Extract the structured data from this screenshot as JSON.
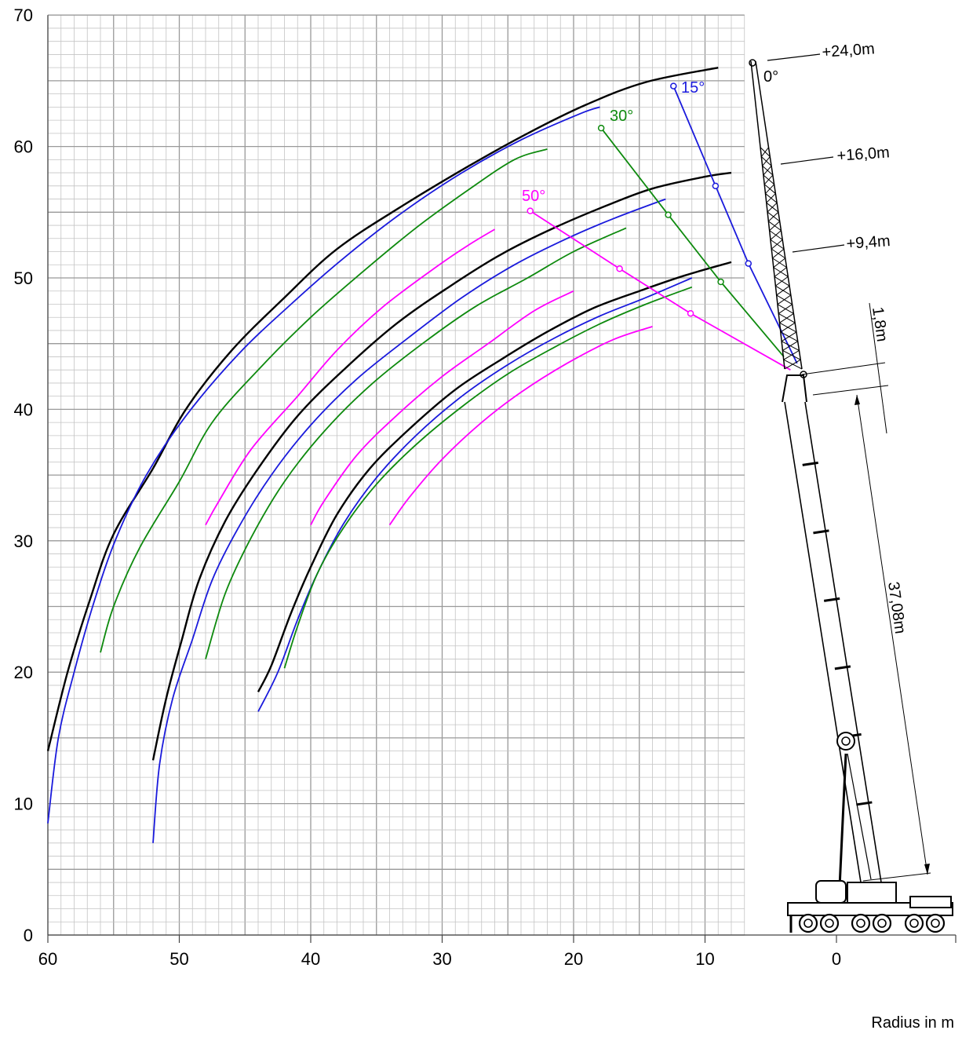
{
  "chart_data": {
    "type": "line",
    "title": "",
    "xlabel": "Radius in m",
    "ylabel": "",
    "xlim": [
      60,
      -9
    ],
    "ylim": [
      0,
      70
    ],
    "x_ticks": [
      60,
      50,
      40,
      30,
      20,
      10,
      0
    ],
    "y_ticks": [
      0,
      10,
      20,
      30,
      40,
      50,
      60,
      70
    ],
    "grid": true,
    "angle_colors": {
      "0°": "#000000",
      "15°": "#1a1adc",
      "30°": "#0e8a0e",
      "50°": "#ff00ff"
    },
    "series": [
      {
        "extension": "+24,0m",
        "angle": "0°",
        "points": [
          [
            60,
            14
          ],
          [
            58.5,
            20
          ],
          [
            56.8,
            25.5
          ],
          [
            55,
            30.5
          ],
          [
            52,
            35.5
          ],
          [
            49.5,
            40
          ],
          [
            46,
            44.5
          ],
          [
            42,
            48.5
          ],
          [
            38,
            52.2
          ],
          [
            33,
            55.5
          ],
          [
            28,
            58.5
          ],
          [
            23.5,
            61
          ],
          [
            19,
            63.2
          ],
          [
            14.5,
            64.9
          ],
          [
            9,
            66
          ]
        ]
      },
      {
        "extension": "+24,0m",
        "angle": "15°",
        "points": [
          [
            60,
            8.5
          ],
          [
            59.2,
            15
          ],
          [
            58,
            20
          ],
          [
            56.5,
            25.3
          ],
          [
            54.8,
            30.2
          ],
          [
            52.5,
            35
          ],
          [
            49.5,
            39.5
          ],
          [
            45.5,
            44.2
          ],
          [
            41.5,
            48
          ],
          [
            37.5,
            51.5
          ],
          [
            33,
            55
          ],
          [
            28.5,
            58
          ],
          [
            24,
            60.5
          ],
          [
            19.5,
            62.5
          ],
          [
            18,
            63
          ]
        ]
      },
      {
        "extension": "+24,0m",
        "angle": "30°",
        "points": [
          [
            56,
            21.5
          ],
          [
            55,
            25
          ],
          [
            53,
            29.5
          ],
          [
            50,
            34.5
          ],
          [
            47.5,
            39
          ],
          [
            44,
            43
          ],
          [
            40,
            47
          ],
          [
            36,
            50.5
          ],
          [
            32,
            53.8
          ],
          [
            28,
            56.7
          ],
          [
            24.5,
            59
          ],
          [
            22,
            59.8
          ]
        ]
      },
      {
        "extension": "+24,0m",
        "angle": "50°",
        "points": [
          [
            48,
            31.2
          ],
          [
            47,
            33
          ],
          [
            44.5,
            37
          ],
          [
            41,
            41
          ],
          [
            38,
            44.5
          ],
          [
            34.5,
            47.8
          ],
          [
            30.5,
            50.8
          ],
          [
            28,
            52.5
          ],
          [
            26,
            53.7
          ]
        ]
      },
      {
        "extension": "+16,0m",
        "angle": "0°",
        "points": [
          [
            52,
            13.3
          ],
          [
            51,
            18
          ],
          [
            49.8,
            22.5
          ],
          [
            48.5,
            27
          ],
          [
            46.5,
            31.5
          ],
          [
            44,
            35.5
          ],
          [
            41,
            39.5
          ],
          [
            37.5,
            43
          ],
          [
            33.5,
            46.5
          ],
          [
            29.5,
            49.3
          ],
          [
            25.5,
            51.8
          ],
          [
            21.5,
            53.8
          ],
          [
            17.5,
            55.5
          ],
          [
            14,
            56.8
          ],
          [
            10,
            57.7
          ],
          [
            8,
            58
          ]
        ]
      },
      {
        "extension": "+16,0m",
        "angle": "15°",
        "points": [
          [
            52,
            7
          ],
          [
            51.5,
            13
          ],
          [
            50.5,
            18
          ],
          [
            49,
            22.5
          ],
          [
            47.5,
            27
          ],
          [
            45.5,
            31
          ],
          [
            43,
            35
          ],
          [
            40,
            38.8
          ],
          [
            36.5,
            42.3
          ],
          [
            32.5,
            45.5
          ],
          [
            28.5,
            48.5
          ],
          [
            24.5,
            51
          ],
          [
            20.5,
            53
          ],
          [
            17,
            54.5
          ],
          [
            13,
            56
          ]
        ]
      },
      {
        "extension": "+16,0m",
        "angle": "30°",
        "points": [
          [
            48,
            21
          ],
          [
            46.5,
            26
          ],
          [
            44.5,
            30.3
          ],
          [
            42,
            34.5
          ],
          [
            39,
            38.3
          ],
          [
            35.5,
            41.8
          ],
          [
            31.5,
            45
          ],
          [
            27.5,
            47.8
          ],
          [
            23.5,
            50
          ],
          [
            20,
            52
          ],
          [
            16,
            53.8
          ]
        ]
      },
      {
        "extension": "+16,0m",
        "angle": "50°",
        "points": [
          [
            40,
            31.2
          ],
          [
            39,
            33
          ],
          [
            36.5,
            36.5
          ],
          [
            33.5,
            39.5
          ],
          [
            30,
            42.5
          ],
          [
            26.5,
            45
          ],
          [
            23,
            47.5
          ],
          [
            20,
            49
          ]
        ]
      },
      {
        "extension": "+9,4m",
        "angle": "0°",
        "points": [
          [
            44,
            18.5
          ],
          [
            43,
            20.5
          ],
          [
            41.5,
            24.5
          ],
          [
            40,
            28
          ],
          [
            38,
            32
          ],
          [
            35.5,
            35.5
          ],
          [
            32.5,
            38.5
          ],
          [
            29,
            41.5
          ],
          [
            25.5,
            43.8
          ],
          [
            22,
            45.9
          ],
          [
            18.5,
            47.7
          ],
          [
            15,
            49
          ],
          [
            11.5,
            50.2
          ],
          [
            8,
            51.2
          ]
        ]
      },
      {
        "extension": "+9,4m",
        "angle": "15°",
        "points": [
          [
            44,
            17
          ],
          [
            42.5,
            20
          ],
          [
            41,
            24
          ],
          [
            39.5,
            27.5
          ],
          [
            37.5,
            31.3
          ],
          [
            35,
            34.8
          ],
          [
            32,
            38
          ],
          [
            28.5,
            41
          ],
          [
            25,
            43.4
          ],
          [
            21.5,
            45.4
          ],
          [
            18,
            47.1
          ],
          [
            14.5,
            48.5
          ],
          [
            11,
            50
          ]
        ]
      },
      {
        "extension": "+9,4m",
        "angle": "30°",
        "points": [
          [
            42,
            20.3
          ],
          [
            41,
            23.5
          ],
          [
            39.5,
            27.5
          ],
          [
            37.5,
            31
          ],
          [
            35,
            34.3
          ],
          [
            32,
            37.3
          ],
          [
            28.5,
            40.2
          ],
          [
            25,
            42.7
          ],
          [
            21.5,
            44.7
          ],
          [
            18,
            46.5
          ],
          [
            14.5,
            48
          ],
          [
            11,
            49.3
          ]
        ]
      },
      {
        "extension": "+9,4m",
        "angle": "50°",
        "points": [
          [
            34,
            31.2
          ],
          [
            32.5,
            33.3
          ],
          [
            30,
            36.2
          ],
          [
            27,
            39
          ],
          [
            24,
            41.3
          ],
          [
            20.5,
            43.5
          ],
          [
            17,
            45.3
          ],
          [
            14,
            46.3
          ]
        ]
      }
    ],
    "jib_lines": [
      {
        "angle": "15°",
        "points": [
          [
            12.4,
            64.6
          ],
          [
            9.2,
            57
          ],
          [
            6.7,
            51.1
          ],
          [
            3,
            43.5
          ]
        ]
      },
      {
        "angle": "30°",
        "points": [
          [
            17.9,
            61.4
          ],
          [
            12.8,
            54.8
          ],
          [
            8.8,
            49.7
          ],
          [
            4,
            44
          ]
        ]
      },
      {
        "angle": "50°",
        "points": [
          [
            23.3,
            55.1
          ],
          [
            16.5,
            50.7
          ],
          [
            11.1,
            47.3
          ],
          [
            3.5,
            43
          ]
        ]
      }
    ],
    "annotations": {
      "ext_24": "+24,0m",
      "ext_16": "+16,0m",
      "ext_94": "+9,4m",
      "angle_0": "0°",
      "angle_15": "15°",
      "angle_30": "30°",
      "angle_50": "50°",
      "offset": "1,8m",
      "boom_length": "37,08m"
    }
  }
}
